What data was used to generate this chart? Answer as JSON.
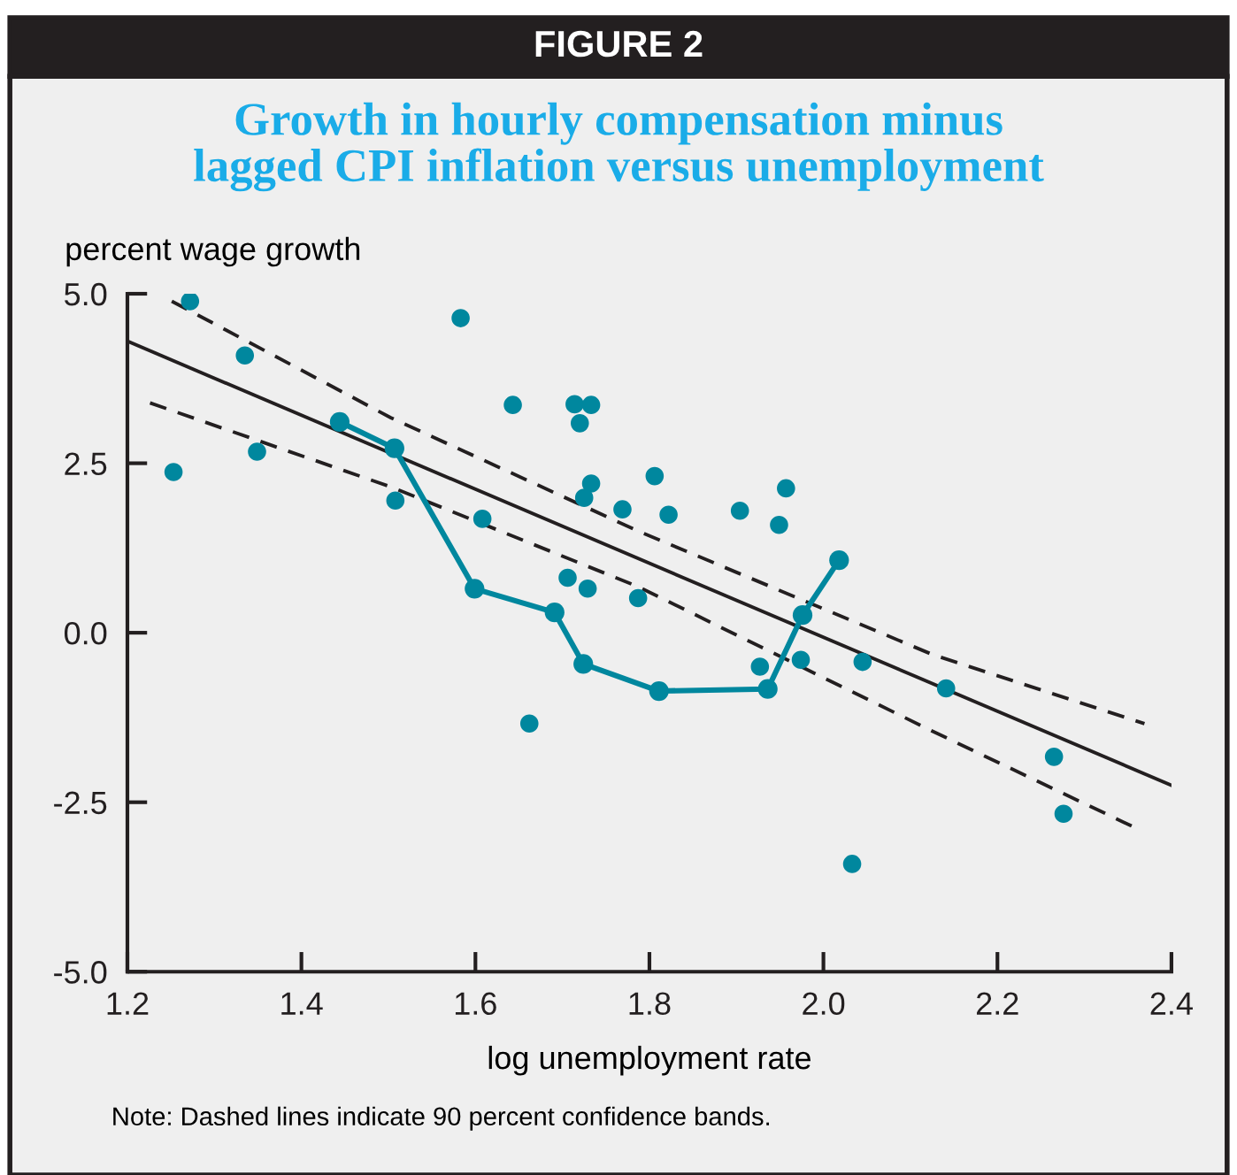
{
  "chart_data": {
    "type": "scatter",
    "title": "FIGURE 2",
    "subtitle": "Growth in hourly compensation minus\nlagged CPI inflation versus unemployment",
    "ylabel": "percent wage growth",
    "xlabel": "log unemployment rate",
    "annotations": [
      "Note: Dashed lines indicate 90 percent confidence bands."
    ],
    "xlim": [
      1.2,
      2.4
    ],
    "xticks": [
      1.2,
      1.4,
      1.6,
      1.8,
      {
        "value": 2.0,
        "label": "2.0"
      },
      2.2,
      2.4
    ],
    "ylim": [
      -5,
      5
    ],
    "yticks": [
      {
        "value": 5,
        "label": "5.0"
      },
      {
        "value": 2.5,
        "label": "2.5"
      },
      {
        "value": 0,
        "label": "0.0"
      },
      {
        "value": -2.5,
        "label": "-2.5"
      },
      {
        "value": -5,
        "label": "-5.0"
      }
    ],
    "grid": false,
    "legend": false,
    "marker": "circle",
    "series": [
      {
        "color": "#00879e",
        "x": [
          1.272,
          1.335,
          1.253,
          1.349,
          1.508,
          1.583,
          1.608,
          1.643,
          1.662,
          1.714,
          1.733,
          1.72,
          1.733,
          1.725,
          1.769,
          1.806,
          1.706,
          1.729,
          1.787,
          1.822,
          1.904,
          1.957,
          1.949,
          1.927,
          1.974,
          2.045,
          2.141,
          2.265,
          2.276,
          2.033
        ],
        "values": [
          4.89,
          4.09,
          2.37,
          2.67,
          1.95,
          4.64,
          1.68,
          3.36,
          -1.34,
          3.37,
          3.36,
          3.09,
          2.2,
          1.99,
          1.82,
          2.31,
          0.81,
          0.65,
          0.51,
          1.74,
          1.8,
          2.13,
          1.59,
          -0.5,
          -0.4,
          -0.43,
          -0.82,
          -1.83,
          -2.67,
          -3.41
        ]
      },
      {
        "type": "line",
        "color": "#00879e",
        "marker": "circle",
        "line_style": "solid",
        "x": [
          1.444,
          1.507,
          1.599,
          1.691,
          1.724,
          1.811,
          1.936,
          1.976,
          2.018
        ],
        "values": [
          3.11,
          2.72,
          0.65,
          0.3,
          -0.46,
          -0.86,
          -0.83,
          0.26,
          1.07
        ]
      },
      {
        "type": "line",
        "color": "#231f20",
        "marker": "none",
        "line_style": "solid",
        "x": [
          1.2,
          2.4
        ],
        "values": [
          4.3,
          -2.25
        ]
      },
      {
        "type": "line",
        "color": "#231f20",
        "marker": "none",
        "line_style": "dashed",
        "x": [
          1.251,
          1.503,
          1.787,
          2.125,
          2.369
        ],
        "values": [
          4.89,
          3.17,
          1.5,
          -0.32,
          -1.34
        ]
      },
      {
        "type": "line",
        "color": "#231f20",
        "marker": "none",
        "line_style": "dashed",
        "x": [
          1.226,
          1.503,
          1.787,
          2.125,
          2.359
        ],
        "values": [
          3.39,
          2.15,
          0.68,
          -1.45,
          -2.88
        ]
      }
    ]
  }
}
